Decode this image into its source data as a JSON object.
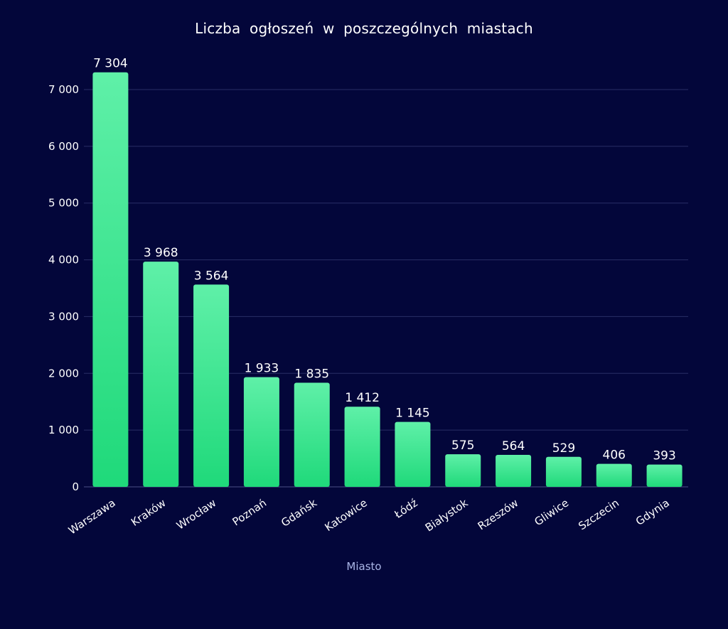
{
  "chart_data": {
    "type": "bar",
    "title": "Liczba ogłoszeń w poszczególnych miastach",
    "xlabel": "Miasto",
    "ylabel": "",
    "categories": [
      "Warszawa",
      "Kraków",
      "Wrocław",
      "Poznań",
      "Gdańsk",
      "Katowice",
      "Łódź",
      "Białystok",
      "Rzeszów",
      "Gliwice",
      "Szczecin",
      "Gdynia"
    ],
    "values": [
      7304,
      3968,
      3564,
      1933,
      1835,
      1412,
      1145,
      575,
      564,
      529,
      406,
      393
    ],
    "value_labels": [
      "7 304",
      "3 968",
      "3 564",
      "1 933",
      "1 835",
      "1 412",
      "1 145",
      "575",
      "564",
      "529",
      "406",
      "393"
    ],
    "ylim": [
      0,
      7000
    ],
    "yticks": [
      0,
      1000,
      2000,
      3000,
      4000,
      5000,
      6000,
      7000
    ],
    "ytick_labels": [
      "0",
      "1 000",
      "2 000",
      "3 000",
      "4 000",
      "5 000",
      "6 000",
      "7 000"
    ],
    "grid": true,
    "colors": {
      "background": "#03063a",
      "bar_top": "#5ff0a8",
      "bar_bottom": "#1fd97a",
      "grid": "#2a2f66",
      "text": "#ffffff",
      "xlabel": "#aab6e6"
    }
  }
}
